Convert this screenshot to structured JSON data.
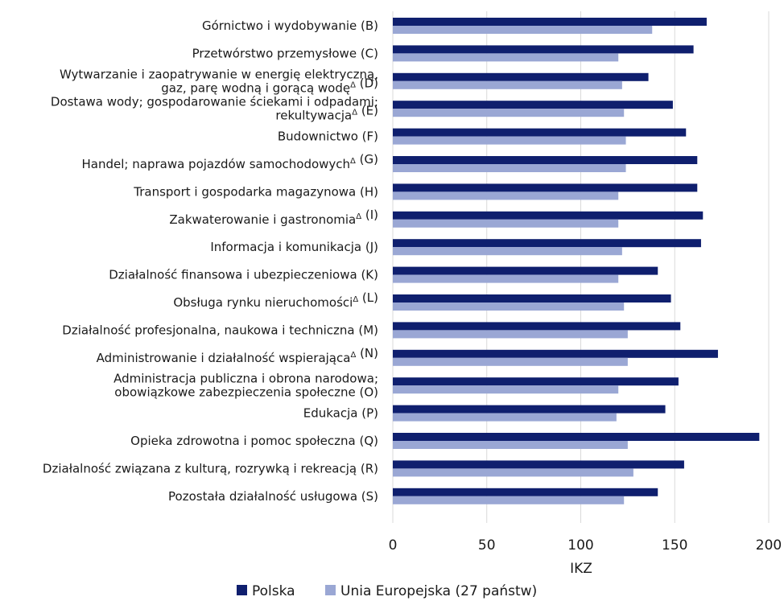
{
  "chart_data": {
    "type": "bar",
    "orientation": "horizontal",
    "xlabel": "IKZ",
    "xlim": [
      0,
      200
    ],
    "xticks": [
      0,
      50,
      100,
      150,
      200
    ],
    "grid": "vertical",
    "legend_position": "bottom",
    "categories": [
      [
        "Górnictwo i wydobywanie (B)"
      ],
      [
        "Przetwórstwo przemysłowe (C)"
      ],
      [
        "Wytwarzanie i zaopatrywanie w energię elektryczną,",
        "gaz, parę wodną i gorącą wodę^Δ (D)"
      ],
      [
        "Dostawa wody; gospodarowanie ściekami i odpadami;",
        "rekultywacja^Δ (E)"
      ],
      [
        "Budownictwo (F)"
      ],
      [
        "Handel; naprawa pojazdów samochodowych^Δ (G)"
      ],
      [
        "Transport i gospodarka magazynowa (H)"
      ],
      [
        "Zakwaterowanie i gastronomia^Δ (I)"
      ],
      [
        "Informacja i komunikacja (J)"
      ],
      [
        "Działalność finansowa i ubezpieczeniowa (K)"
      ],
      [
        "Obsługa rynku nieruchomości^Δ (L)"
      ],
      [
        "Działalność profesjonalna, naukowa i techniczna (M)"
      ],
      [
        "Administrowanie i działalność wspierająca^Δ (N)"
      ],
      [
        "Administracja publiczna i obrona narodowa;",
        "obowiązkowe zabezpieczenia społeczne (O)"
      ],
      [
        "Edukacja (P)"
      ],
      [
        "Opieka zdrowotna i pomoc społeczna (Q)"
      ],
      [
        "Działalność związana z kulturą, rozrywką i rekreacją (R)"
      ],
      [
        "Pozostała działalność usługowa (S)"
      ]
    ],
    "series": [
      {
        "name": "Polska",
        "color": "#0f1f6e",
        "values": [
          167,
          160,
          136,
          149,
          156,
          162,
          162,
          165,
          164,
          141,
          148,
          153,
          173,
          152,
          145,
          195,
          155,
          141
        ]
      },
      {
        "name": "Unia Europejska (27 państw)",
        "color": "#9aa7d4",
        "values": [
          138,
          120,
          122,
          123,
          124,
          124,
          120,
          120,
          122,
          120,
          123,
          125,
          125,
          120,
          119,
          125,
          128,
          123
        ]
      }
    ]
  }
}
